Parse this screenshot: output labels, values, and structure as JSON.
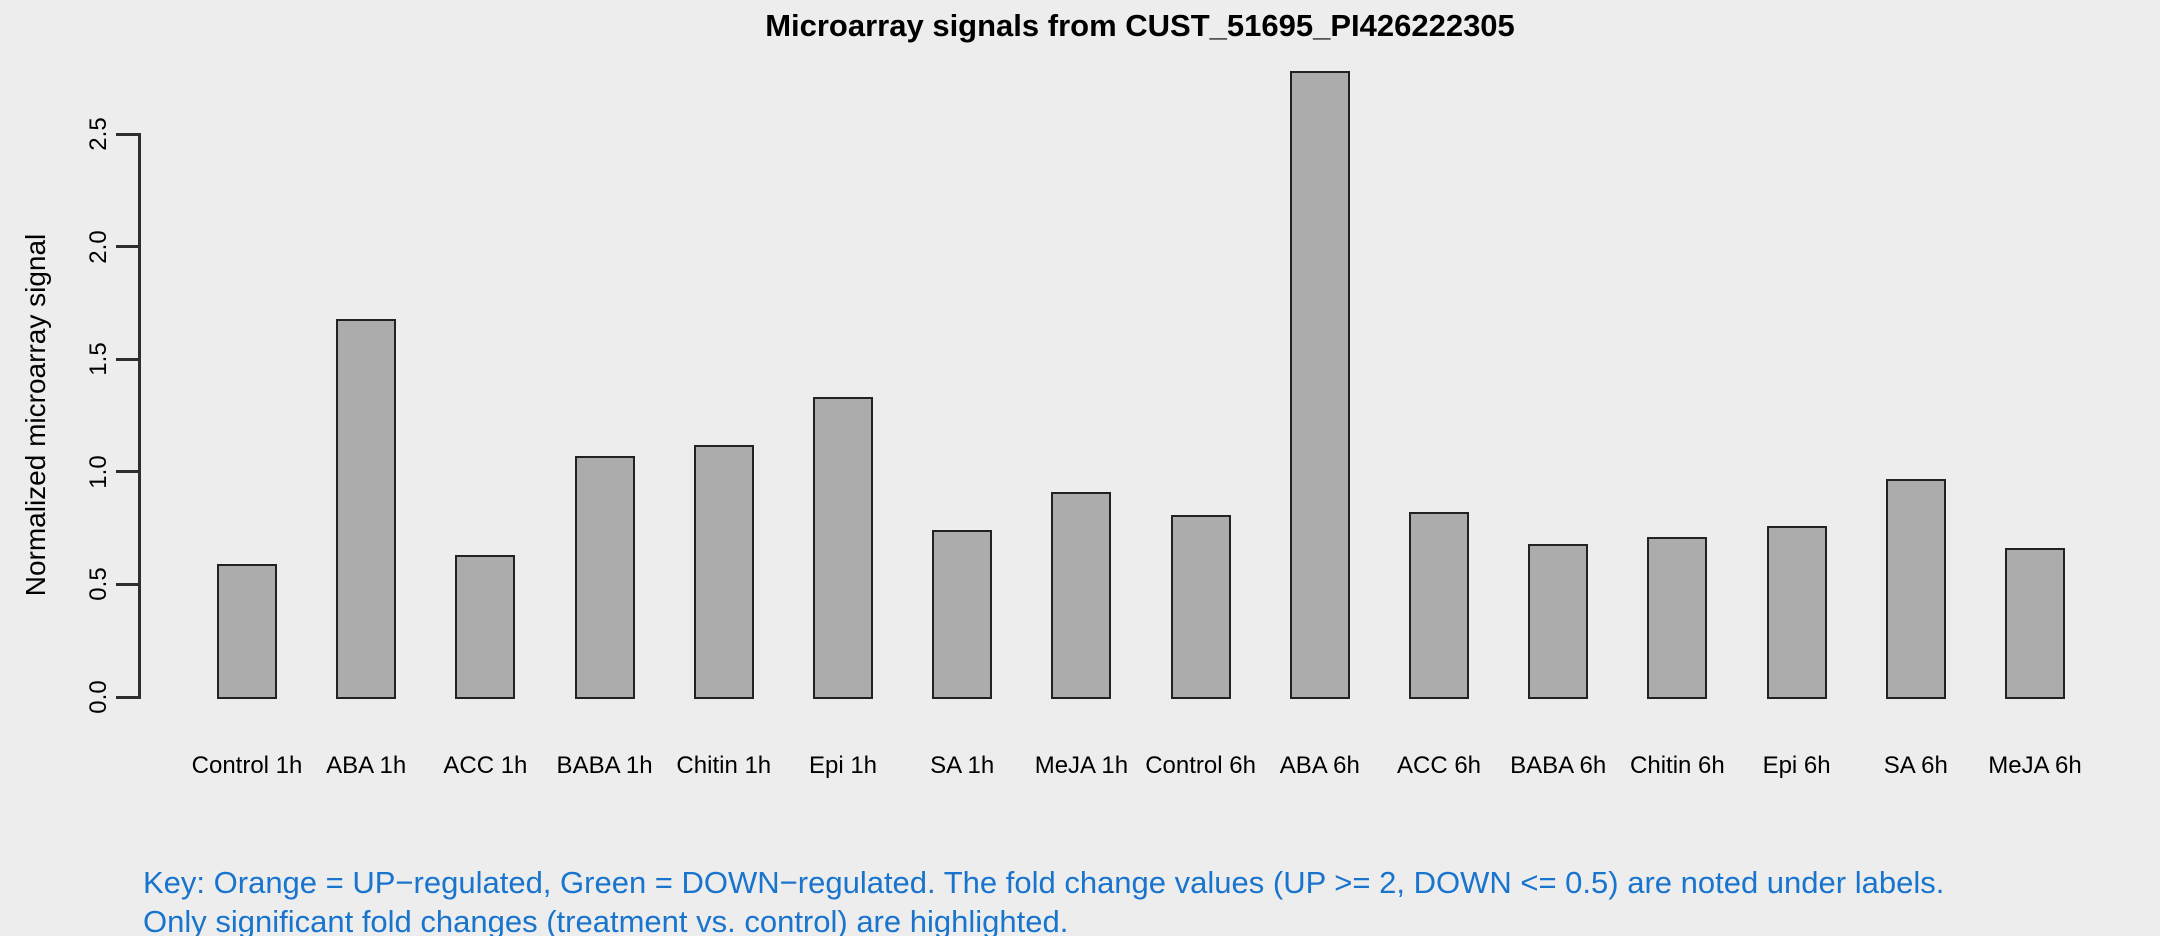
{
  "chart_data": {
    "type": "bar",
    "title": "Microarray signals from CUST_51695_PI426222305",
    "xlabel": "",
    "ylabel": "Normalized microarray signal",
    "categories": [
      "Control 1h",
      "ABA 1h",
      "ACC 1h",
      "BABA 1h",
      "Chitin 1h",
      "Epi 1h",
      "SA 1h",
      "MeJA 1h",
      "Control 6h",
      "ABA 6h",
      "ACC 6h",
      "BABA 6h",
      "Chitin 6h",
      "Epi 6h",
      "SA 6h",
      "MeJA 6h"
    ],
    "values": [
      0.59,
      1.68,
      0.63,
      1.07,
      1.12,
      1.33,
      0.74,
      0.91,
      0.81,
      2.78,
      0.82,
      0.68,
      0.71,
      0.76,
      0.97,
      0.66
    ],
    "yticks": [
      0.0,
      0.5,
      1.0,
      1.5,
      2.0,
      2.5
    ],
    "ytick_labels": [
      "0.0",
      "0.5",
      "1.0",
      "1.5",
      "2.0",
      "2.5"
    ],
    "ylim": [
      0,
      2.78
    ],
    "grid": false,
    "legend": "none",
    "colors": {
      "background": "#EDEDED",
      "bar_fill": "#ACACAC",
      "bar_border": "#222222",
      "axis": "#2E2E2E",
      "text": "#000000",
      "note_text": "#1874CD"
    }
  },
  "notes": {
    "line1": "Key: Orange = UP−regulated, Green = DOWN−regulated. The fold change values (UP >= 2, DOWN <= 0.5) are noted under labels.",
    "line2": "Only significant fold changes (treatment vs. control) are highlighted."
  }
}
